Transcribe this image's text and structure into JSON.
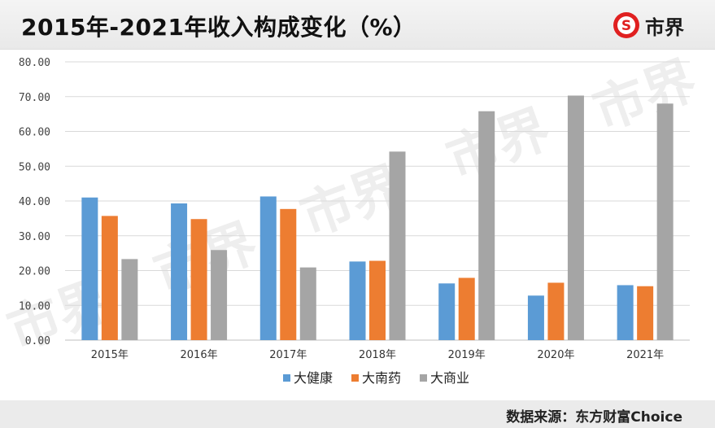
{
  "header": {
    "title": "2015年-2021年收入构成变化（%）",
    "brand_name": "市界",
    "brand_icon": "dollar-circle-icon",
    "brand_color": "#e02020"
  },
  "footer": {
    "source": "数据来源：东方财富Choice"
  },
  "chart_data": {
    "type": "bar",
    "categories": [
      "2015年",
      "2016年",
      "2017年",
      "2018年",
      "2019年",
      "2020年",
      "2021年"
    ],
    "series": [
      {
        "name": "大健康",
        "color": "#5b9bd5",
        "values": [
          41.0,
          39.3,
          41.3,
          22.6,
          16.3,
          12.8,
          15.8
        ]
      },
      {
        "name": "大南药",
        "color": "#ed7d31",
        "values": [
          35.7,
          34.8,
          37.7,
          22.8,
          17.9,
          16.5,
          15.5
        ]
      },
      {
        "name": "大商业",
        "color": "#a5a5a5",
        "values": [
          23.3,
          25.9,
          20.9,
          54.2,
          65.8,
          70.3,
          68.0
        ]
      }
    ],
    "yticks": [
      "0.00",
      "10.00",
      "20.00",
      "30.00",
      "40.00",
      "50.00",
      "60.00",
      "70.00",
      "80.00"
    ],
    "ylim": [
      0,
      80
    ],
    "grid": true,
    "legend": "bottom",
    "xlabel": "",
    "ylabel": ""
  }
}
